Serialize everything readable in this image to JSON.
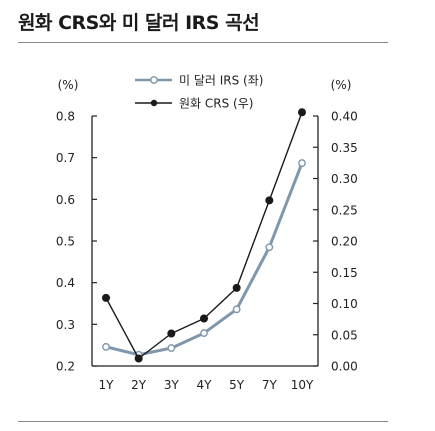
{
  "title": "원화 CRS와 미 달러 IRS 곡선",
  "colors": {
    "irs": "#7f97ad",
    "crs": "#1a1a1a",
    "axis": "#222222"
  },
  "chart_data": {
    "type": "line",
    "categories": [
      "1Y",
      "2Y",
      "3Y",
      "4Y",
      "5Y",
      "7Y",
      "10Y"
    ],
    "left_axis": {
      "label": "(%)",
      "ylim": [
        0.2,
        0.8
      ],
      "ticks": [
        "0.2",
        "0.3",
        "0.4",
        "0.5",
        "0.6",
        "0.7",
        "0.8"
      ]
    },
    "right_axis": {
      "label": "(%)",
      "ylim": [
        0.0,
        0.4
      ],
      "ticks": [
        "0.00",
        "0.05",
        "0.10",
        "0.15",
        "0.20",
        "0.25",
        "0.30",
        "0.35",
        "0.40"
      ]
    },
    "legend_position": "top-center",
    "grid": false,
    "series": [
      {
        "name": "미 달러 IRS (좌)",
        "axis": "left",
        "marker": "open-circle",
        "values": [
          0.246,
          0.227,
          0.243,
          0.279,
          0.336,
          0.485,
          0.687
        ]
      },
      {
        "name": "원화 CRS (우)",
        "axis": "right",
        "marker": "filled-circle",
        "values": [
          0.109,
          0.012,
          0.052,
          0.076,
          0.125,
          0.265,
          0.406
        ]
      }
    ]
  }
}
